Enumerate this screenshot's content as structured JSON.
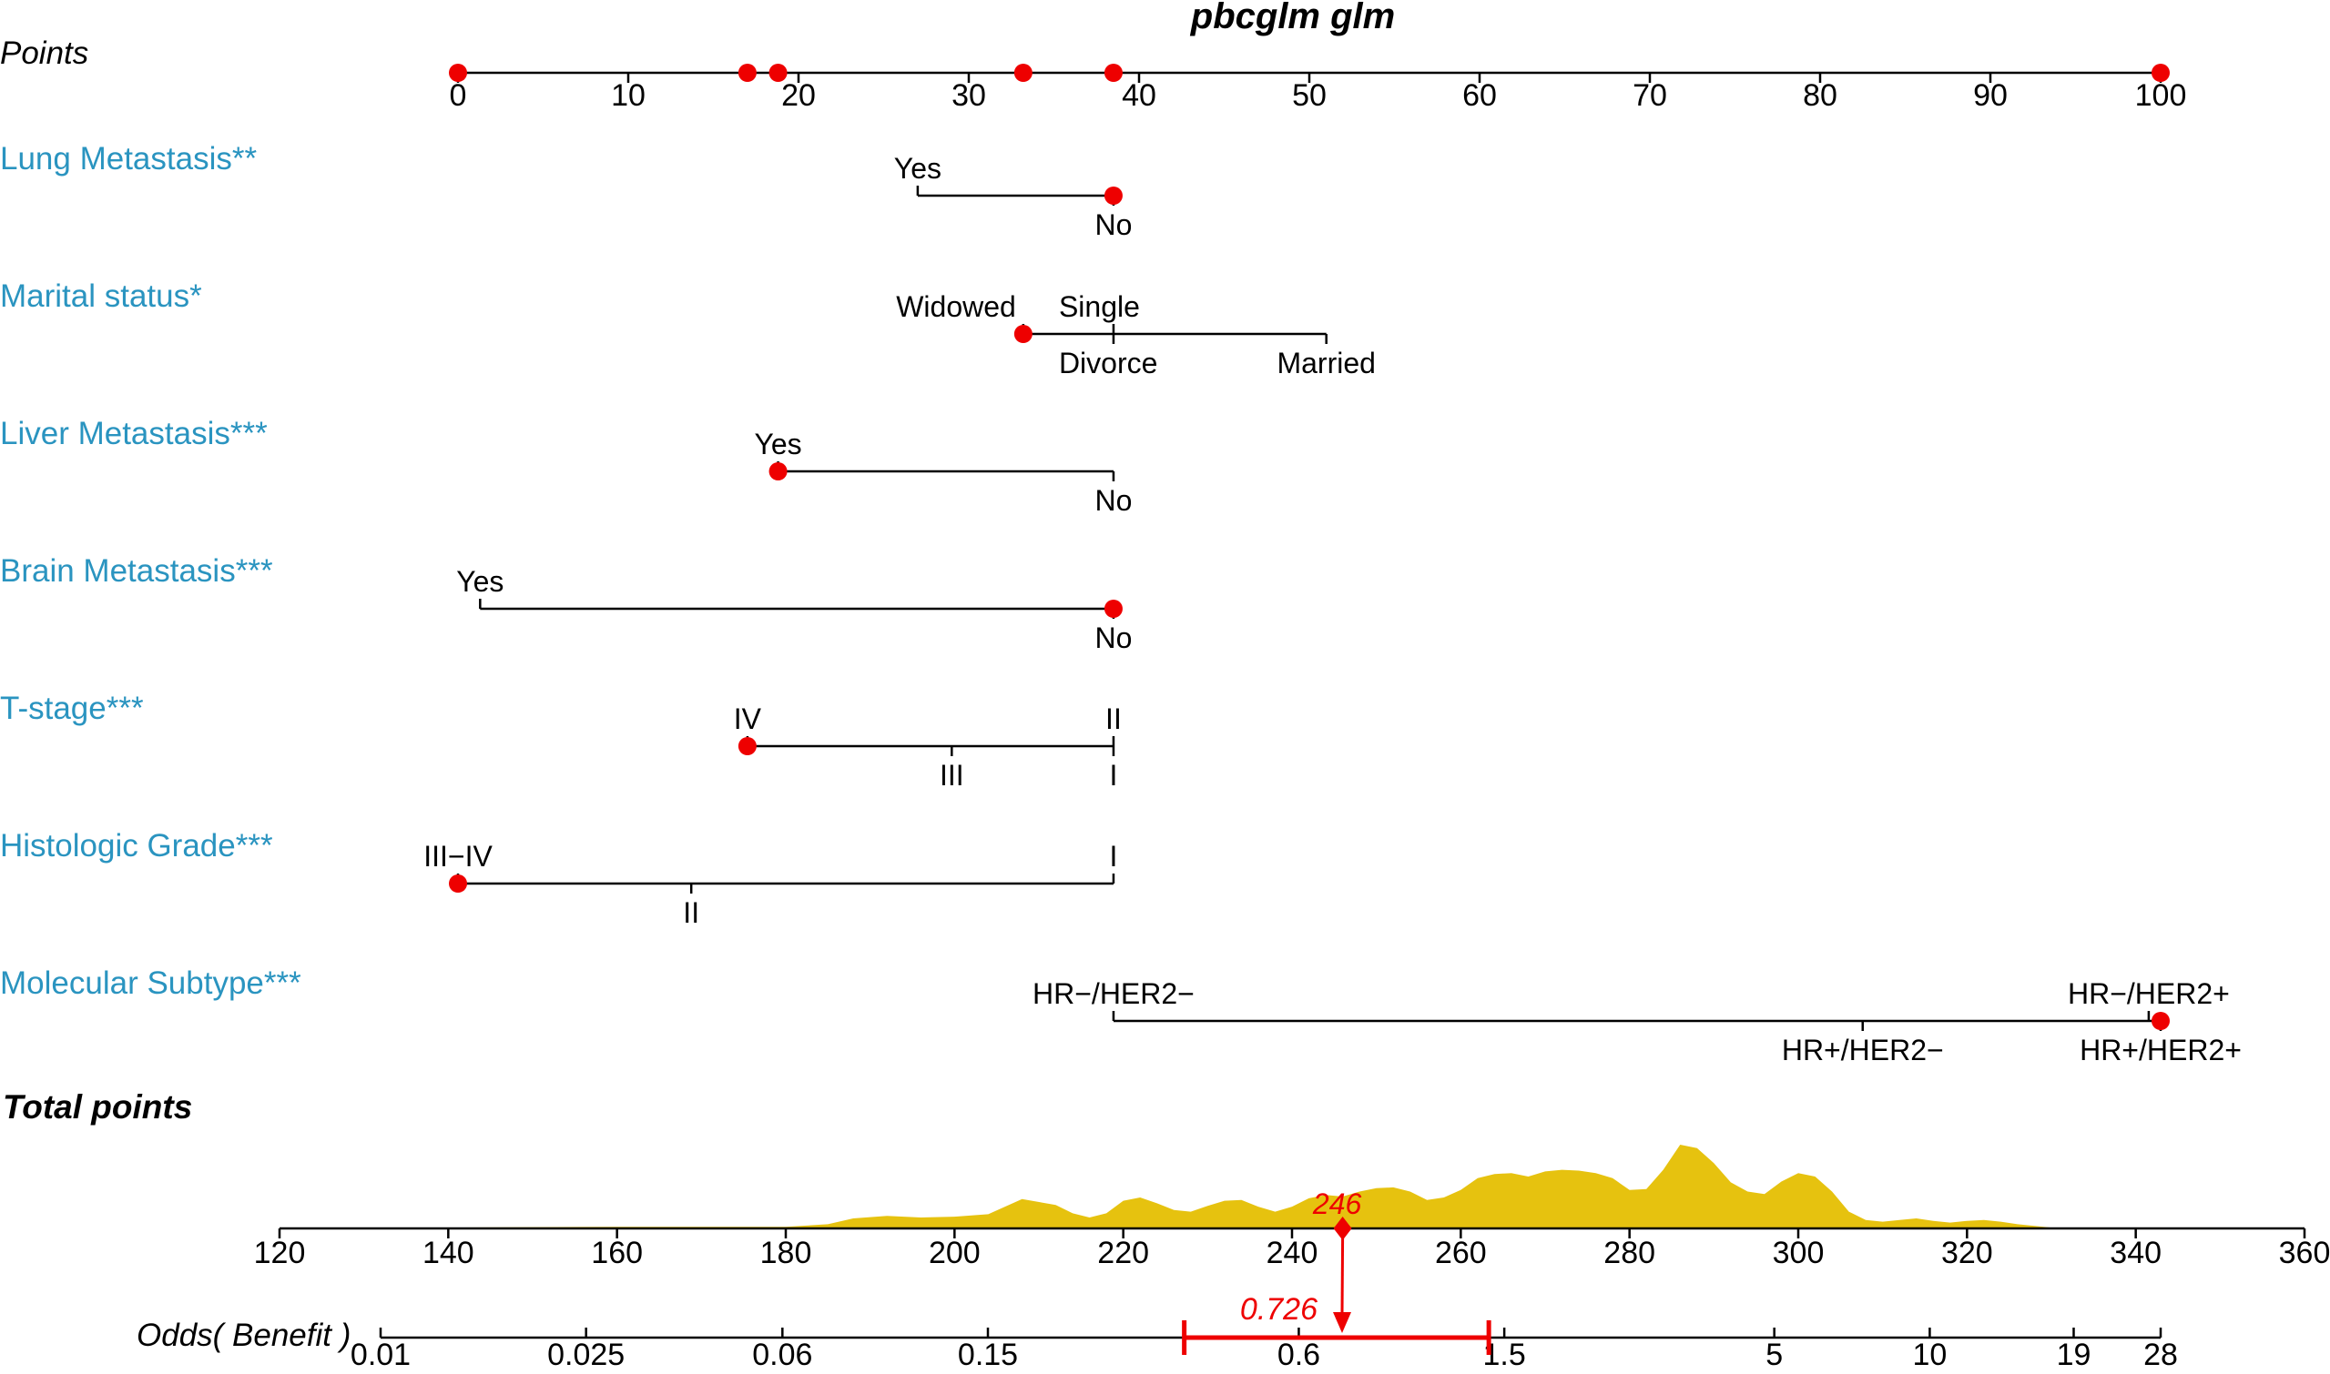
{
  "chart_data": {
    "type": "nomogram",
    "title": "pbcglm glm",
    "colors": {
      "variable_label": "#2a94c0",
      "selected_point": "#ee0000",
      "density": "#e6c20f",
      "axis": "#000000"
    },
    "points_axis": {
      "label": "Points",
      "range": [
        0,
        100
      ],
      "ticks": [
        0,
        10,
        20,
        30,
        40,
        50,
        60,
        70,
        80,
        90,
        100
      ],
      "tick_labels": [
        "0",
        "10",
        "20",
        "30",
        "40",
        "50",
        "60",
        "70",
        "80",
        "90",
        "100"
      ],
      "highlighted_points": [
        0,
        17,
        18.8,
        33.2,
        38.5,
        100
      ]
    },
    "variables": [
      {
        "label": "Lung Metastasis**",
        "range": [
          27,
          38.5
        ],
        "levels": [
          {
            "name": "Yes",
            "points": 27,
            "side": "above"
          },
          {
            "name": "No",
            "points": 38.5,
            "side": "below"
          }
        ],
        "selected": "No"
      },
      {
        "label": "Marital status*",
        "range": [
          33.2,
          51
        ],
        "levels": [
          {
            "name": "Widowed",
            "points": 33.2,
            "side": "above",
            "anchor": "end"
          },
          {
            "name": "Single",
            "points": 38.5,
            "side": "above",
            "anchor": "start"
          },
          {
            "name": "Divorce",
            "points": 38.5,
            "side": "below",
            "anchor": "start"
          },
          {
            "name": "Married",
            "points": 51,
            "side": "below"
          }
        ],
        "selected": "Widowed"
      },
      {
        "label": "Liver Metastasis***",
        "range": [
          18.8,
          38.5
        ],
        "levels": [
          {
            "name": "Yes",
            "points": 18.8,
            "side": "above"
          },
          {
            "name": "No",
            "points": 38.5,
            "side": "below"
          }
        ],
        "selected": "Yes"
      },
      {
        "label": "Brain Metastasis***",
        "range": [
          1.3,
          38.5
        ],
        "levels": [
          {
            "name": "Yes",
            "points": 1.3,
            "side": "above"
          },
          {
            "name": "No",
            "points": 38.5,
            "side": "below"
          }
        ],
        "selected": "No"
      },
      {
        "label": "T-stage***",
        "range": [
          17,
          38.5
        ],
        "levels": [
          {
            "name": "IV",
            "points": 17,
            "side": "above"
          },
          {
            "name": "III",
            "points": 29,
            "side": "below"
          },
          {
            "name": "II",
            "points": 38.5,
            "side": "above"
          },
          {
            "name": "I",
            "points": 38.5,
            "side": "below"
          }
        ],
        "selected": "IV"
      },
      {
        "label": "Histologic Grade***",
        "range": [
          0,
          38.5
        ],
        "levels": [
          {
            "name": "III−IV",
            "points": 0,
            "side": "above"
          },
          {
            "name": "II",
            "points": 13.7,
            "side": "below"
          },
          {
            "name": "I",
            "points": 38.5,
            "side": "above"
          }
        ],
        "selected": "III−IV"
      },
      {
        "label": "Molecular Subtype***",
        "range": [
          38.5,
          100
        ],
        "levels": [
          {
            "name": "HR−/HER2−",
            "points": 38.5,
            "side": "above"
          },
          {
            "name": "HR+/HER2−",
            "points": 82.5,
            "side": "below"
          },
          {
            "name": "HR−/HER2+",
            "points": 99.3,
            "side": "above"
          },
          {
            "name": "HR+/HER2+",
            "points": 100,
            "side": "below"
          }
        ],
        "selected": "HR+/HER2+"
      }
    ],
    "total_points": {
      "label": "Total points",
      "range": [
        120,
        360
      ],
      "ticks": [
        120,
        140,
        160,
        180,
        200,
        220,
        240,
        260,
        280,
        300,
        320,
        340,
        360
      ],
      "tick_labels": [
        "120",
        "140",
        "160",
        "180",
        "200",
        "220",
        "240",
        "260",
        "280",
        "300",
        "320",
        "340",
        "360"
      ],
      "value": 246,
      "value_label": "246",
      "density": {
        "x": [
          120,
          140,
          160,
          180,
          185,
          188,
          192,
          196,
          200,
          204,
          208,
          212,
          214,
          216,
          218,
          220,
          222,
          224,
          226,
          228,
          230,
          232,
          234,
          236,
          238,
          240,
          242,
          244,
          246,
          248,
          250,
          252,
          254,
          256,
          258,
          260,
          262,
          264,
          266,
          268,
          270,
          272,
          274,
          276,
          278,
          280,
          282,
          284,
          286,
          288,
          290,
          292,
          294,
          296,
          298,
          300,
          302,
          304,
          306,
          308,
          310,
          312,
          314,
          316,
          318,
          320,
          322,
          324,
          326,
          328,
          330,
          340,
          350,
          360
        ],
        "y": [
          0,
          0.01,
          0.02,
          0.02,
          0.05,
          0.12,
          0.15,
          0.13,
          0.14,
          0.17,
          0.35,
          0.28,
          0.18,
          0.13,
          0.18,
          0.33,
          0.37,
          0.3,
          0.22,
          0.2,
          0.27,
          0.33,
          0.34,
          0.26,
          0.2,
          0.26,
          0.36,
          0.4,
          0.38,
          0.44,
          0.48,
          0.49,
          0.44,
          0.34,
          0.37,
          0.46,
          0.6,
          0.65,
          0.66,
          0.62,
          0.68,
          0.7,
          0.69,
          0.66,
          0.6,
          0.46,
          0.47,
          0.7,
          1.0,
          0.96,
          0.78,
          0.55,
          0.44,
          0.41,
          0.56,
          0.66,
          0.62,
          0.44,
          0.2,
          0.1,
          0.08,
          0.1,
          0.12,
          0.09,
          0.07,
          0.09,
          0.1,
          0.08,
          0.05,
          0.03,
          0.01,
          0.01,
          0.005,
          0
        ]
      }
    },
    "odds_axis": {
      "label": "Odds( Benefit )",
      "scale": "log",
      "ticks": [
        0.01,
        0.025,
        0.06,
        0.15,
        0.6,
        1.5,
        5,
        10,
        19,
        28
      ],
      "tick_labels": [
        "0.01",
        "0.025",
        "0.06",
        "0.15",
        "0.6",
        "1.5",
        "5",
        "10",
        "19",
        "28"
      ],
      "estimate": 0.726,
      "estimate_label": "0.726",
      "ci": [
        0.36,
        1.4
      ]
    }
  }
}
